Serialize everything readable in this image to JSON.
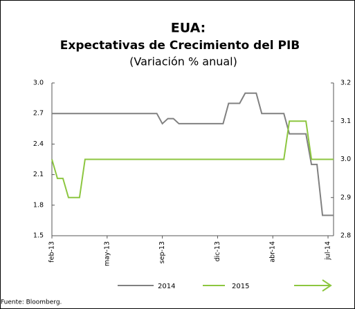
{
  "chart_data": {
    "type": "line",
    "title": "EUA:",
    "subtitle": "Expectativas de Crecimiento del PIB",
    "subtitle2": "(Variación % anual)",
    "source": "Fuente: Bloomberg.",
    "categories": [
      "feb-13",
      null,
      null,
      null,
      null,
      null,
      null,
      null,
      null,
      null,
      "may-13",
      null,
      null,
      null,
      null,
      null,
      null,
      null,
      null,
      null,
      "sep-13",
      null,
      null,
      null,
      null,
      null,
      null,
      null,
      null,
      null,
      "dic-13",
      null,
      null,
      null,
      null,
      null,
      null,
      null,
      null,
      null,
      "abr-14",
      null,
      null,
      null,
      null,
      null,
      null,
      null,
      null,
      null,
      "jul-14",
      null
    ],
    "series": [
      {
        "name": "2014",
        "color": "#808080",
        "axis": "y",
        "values": [
          2.7,
          2.7,
          2.7,
          2.7,
          2.7,
          2.7,
          2.7,
          2.7,
          2.7,
          2.7,
          2.7,
          2.7,
          2.7,
          2.7,
          2.7,
          2.7,
          2.7,
          2.7,
          2.7,
          2.7,
          2.6,
          2.65,
          2.65,
          2.6,
          2.6,
          2.6,
          2.6,
          2.6,
          2.6,
          2.6,
          2.6,
          2.6,
          2.8,
          2.8,
          2.8,
          2.9,
          2.9,
          2.9,
          2.7,
          2.7,
          2.7,
          2.7,
          2.7,
          2.5,
          2.5,
          2.5,
          2.5,
          2.2,
          2.2,
          1.7,
          1.7,
          1.7
        ]
      },
      {
        "name": "2015",
        "color": "#8cc63f",
        "axis": "y2",
        "values": [
          3.0,
          2.95,
          2.95,
          2.9,
          2.9,
          2.9,
          3.0,
          3.0,
          3.0,
          3.0,
          3.0,
          3.0,
          3.0,
          3.0,
          3.0,
          3.0,
          3.0,
          3.0,
          3.0,
          3.0,
          3.0,
          3.0,
          3.0,
          3.0,
          3.0,
          3.0,
          3.0,
          3.0,
          3.0,
          3.0,
          3.0,
          3.0,
          3.0,
          3.0,
          3.0,
          3.0,
          3.0,
          3.0,
          3.0,
          3.0,
          3.0,
          3.0,
          3.0,
          3.1,
          3.1,
          3.1,
          3.1,
          3.0,
          3.0,
          3.0,
          3.0,
          3.0
        ]
      }
    ],
    "ylim": [
      1.5,
      3.0
    ],
    "yticks": [
      1.5,
      1.8,
      2.1,
      2.4,
      2.7,
      {
        "value": 3,
        "label": "3.0"
      }
    ],
    "y2lim": [
      2.8,
      3.2
    ],
    "y2ticks": [
      2.8,
      2.9,
      {
        "value": 3,
        "label": "3.0"
      },
      3.1,
      3.2
    ],
    "grid": false
  }
}
